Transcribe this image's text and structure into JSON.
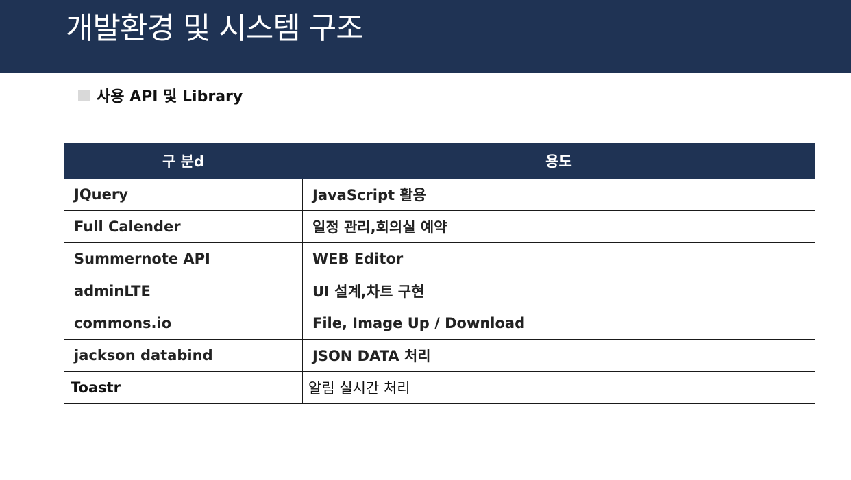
{
  "header": {
    "title": "개발환경 및 시스템 구조"
  },
  "section": {
    "heading": "사용 API 및 Library"
  },
  "table": {
    "columns": [
      "구 분d",
      "용도"
    ],
    "rows": [
      [
        "JQuery",
        "JavaScript 활용"
      ],
      [
        "Full Calender",
        "일정 관리,회의실 예약"
      ],
      [
        "Summernote API",
        "WEB Editor"
      ],
      [
        "adminLTE",
        "UI 설계,차트 구현"
      ],
      [
        "commons.io",
        "File, Image Up / Download"
      ],
      [
        "jackson databind",
        "JSON DATA 처리"
      ],
      [
        "Toastr",
        "알림 실시간 처리"
      ]
    ]
  },
  "colors": {
    "primary": "#1f3354",
    "bullet": "#d9d9d9",
    "background": "#ffffff"
  }
}
